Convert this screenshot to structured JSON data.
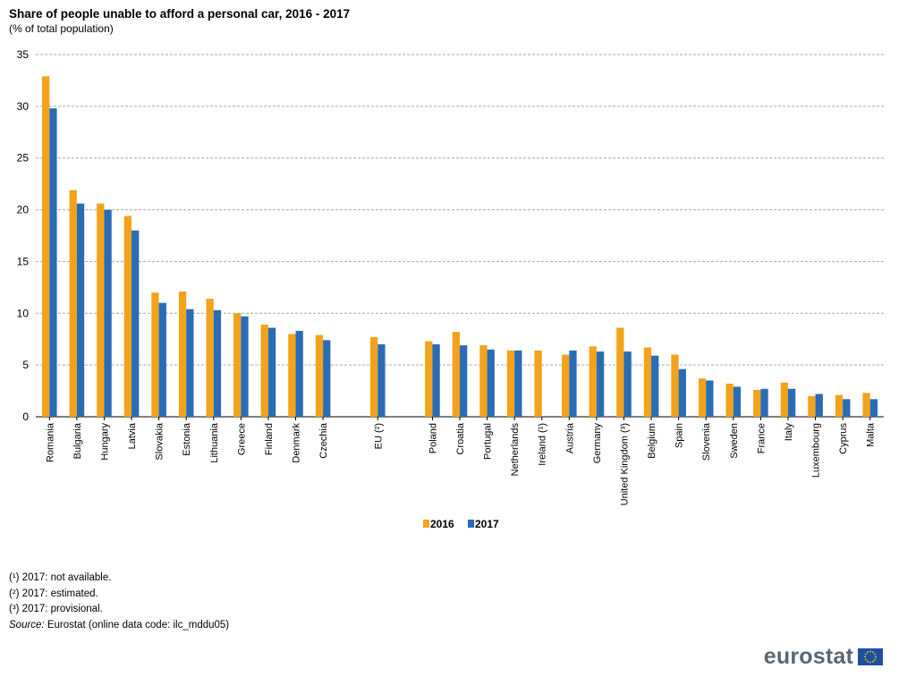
{
  "title": "Share of people unable to afford a personal car, 2016 - 2017",
  "subtitle": "(% of total population)",
  "notes": [
    "(¹) 2017: not available.",
    "(²) 2017: estimated.",
    "(³) 2017: provisional."
  ],
  "source": {
    "label": "Source:",
    "text": "Eurostat (online data code: ilc_mddu05)"
  },
  "logo": {
    "text": "eurostat"
  },
  "colors": {
    "series_2016": "#f2a31b",
    "series_2017": "#2a6cb5",
    "grid": "#aaaaaa",
    "logo_text": "#5b6770",
    "flag_blue": "#1d4fa2",
    "flag_stars": "#ffdd00"
  },
  "chart_data": {
    "type": "bar",
    "categories": [
      "Romania",
      "Bulgaria",
      "Hungary",
      "Latvia",
      "Slovakia",
      "Estonia",
      "Lithuania",
      "Greece",
      "Finland",
      "Denmark",
      "Czechia",
      "",
      "EU (²)",
      "",
      "Poland",
      "Croatia",
      "Portugal",
      "Netherlands",
      "Ireland (¹)",
      "Austria",
      "Germany",
      "United Kingdom (³)",
      "Belgium",
      "Spain",
      "Slovenia",
      "Sweden",
      "France",
      "Italy",
      "Luxembourg",
      "Cyprus",
      "Malta"
    ],
    "series": [
      {
        "name": "2016",
        "values": [
          32.9,
          21.9,
          20.6,
          19.4,
          12.0,
          12.1,
          11.4,
          10.0,
          8.9,
          8.0,
          7.9,
          null,
          7.7,
          null,
          7.3,
          8.2,
          6.9,
          6.4,
          6.4,
          6.0,
          6.8,
          8.6,
          6.7,
          6.0,
          3.7,
          3.2,
          2.6,
          3.3,
          2.0,
          2.1,
          2.3
        ]
      },
      {
        "name": "2017",
        "values": [
          29.8,
          20.6,
          20.0,
          18.0,
          11.0,
          10.4,
          10.3,
          9.7,
          8.6,
          8.3,
          7.4,
          null,
          7.0,
          null,
          7.0,
          6.9,
          6.5,
          6.4,
          null,
          6.4,
          6.3,
          6.3,
          5.9,
          4.6,
          3.5,
          2.9,
          2.7,
          2.7,
          2.2,
          1.7,
          1.7
        ]
      }
    ],
    "ylim": [
      0,
      35
    ],
    "yticks": [
      0,
      5,
      10,
      15,
      20,
      25,
      30,
      35
    ],
    "xlabel": "",
    "ylabel": "",
    "grid": true,
    "legend_position": "bottom-center"
  }
}
